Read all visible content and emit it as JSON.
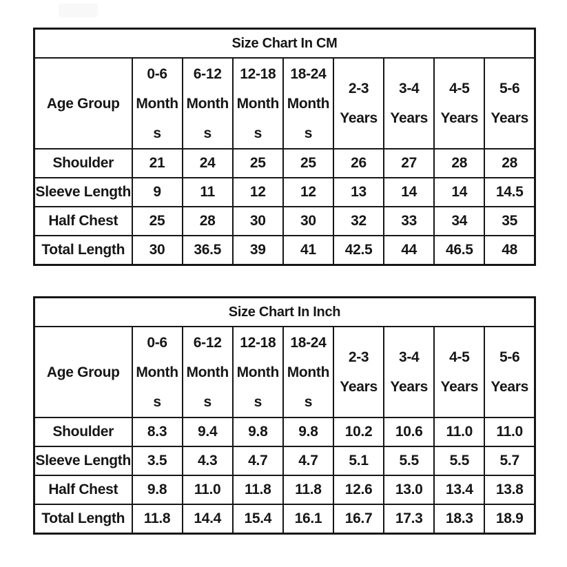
{
  "colors": {
    "background": "#ffffff",
    "table_border": "#161616",
    "text": "#161616",
    "smudge": "#f8f8f8"
  },
  "chart_data": [
    {
      "type": "table",
      "title": "Size Chart In CM",
      "corner": "Age Group",
      "columns": [
        "0-6 Months",
        "6-12 Months",
        "12-18 Months",
        "18-24 Months",
        "2-3 Years",
        "3-4 Years",
        "4-5 Years",
        "5-6 Years"
      ],
      "col_display": [
        "0-6\nMonth\ns",
        "6-12\nMonth\ns",
        "12-18\nMonth\ns",
        "18-24\nMonth\ns",
        "2-3\nYears",
        "3-4\nYears",
        "4-5\nYears",
        "5-6\nYears"
      ],
      "rows": [
        {
          "label": "Shoulder",
          "values": [
            "21",
            "24",
            "25",
            "25",
            "26",
            "27",
            "28",
            "28"
          ]
        },
        {
          "label": "Sleeve Length",
          "values": [
            "9",
            "11",
            "12",
            "12",
            "13",
            "14",
            "14",
            "14.5"
          ]
        },
        {
          "label": "Half Chest",
          "values": [
            "25",
            "28",
            "30",
            "30",
            "32",
            "33",
            "34",
            "35"
          ]
        },
        {
          "label": "Total Length",
          "values": [
            "30",
            "36.5",
            "39",
            "41",
            "42.5",
            "44",
            "46.5",
            "48"
          ]
        }
      ]
    },
    {
      "type": "table",
      "title": "Size Chart In Inch",
      "corner": "Age Group",
      "columns": [
        "0-6 Months",
        "6-12 Months",
        "12-18 Months",
        "18-24 Months",
        "2-3 Years",
        "3-4 Years",
        "4-5 Years",
        "5-6 Years"
      ],
      "col_display": [
        "0-6\nMonth\ns",
        "6-12\nMonth\ns",
        "12-18\nMonth\ns",
        "18-24\nMonth\ns",
        "2-3\nYears",
        "3-4\nYears",
        "4-5\nYears",
        "5-6\nYears"
      ],
      "rows": [
        {
          "label": "Shoulder",
          "values": [
            "8.3",
            "9.4",
            "9.8",
            "9.8",
            "10.2",
            "10.6",
            "11.0",
            "11.0"
          ]
        },
        {
          "label": "Sleeve Length",
          "values": [
            "3.5",
            "4.3",
            "4.7",
            "4.7",
            "5.1",
            "5.5",
            "5.5",
            "5.7"
          ]
        },
        {
          "label": "Half Chest",
          "values": [
            "9.8",
            "11.0",
            "11.8",
            "11.8",
            "12.6",
            "13.0",
            "13.4",
            "13.8"
          ]
        },
        {
          "label": "Total Length",
          "values": [
            "11.8",
            "14.4",
            "15.4",
            "16.1",
            "16.7",
            "17.3",
            "18.3",
            "18.9"
          ]
        }
      ]
    }
  ]
}
